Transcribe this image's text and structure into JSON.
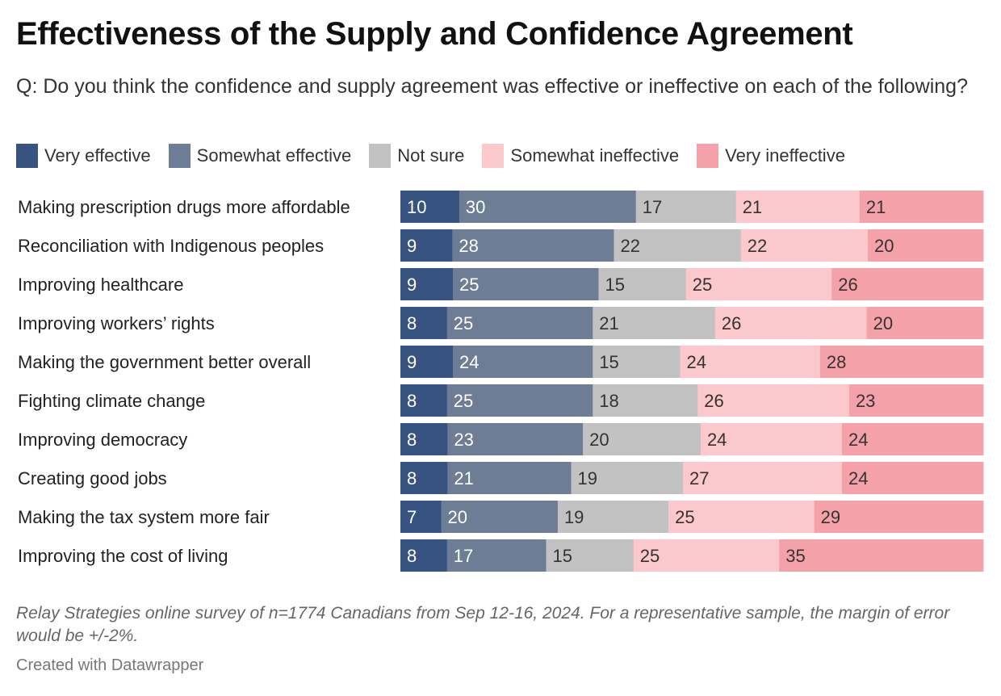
{
  "header": {
    "title": "Effectiveness of the Supply and Confidence Agreement",
    "subtitle": "Q: Do you think the confidence and supply agreement was effective or ineffective on each of the following?"
  },
  "legend": [
    {
      "label": "Very effective",
      "color": "#375480"
    },
    {
      "label": "Somewhat effective",
      "color": "#6e7d96"
    },
    {
      "label": "Not sure",
      "color": "#c2c2c2"
    },
    {
      "label": "Somewhat ineffective",
      "color": "#fbc8cb"
    },
    {
      "label": "Very ineffective",
      "color": "#f4a1a9"
    }
  ],
  "chart_data": {
    "type": "bar",
    "orientation": "horizontal",
    "stacked": true,
    "categories": [
      "Making prescription drugs more affordable",
      "Reconciliation with Indigenous peoples",
      "Improving healthcare",
      "Improving workers’ rights",
      "Making the government better overall",
      "Fighting climate change",
      "Improving democracy",
      "Creating good jobs",
      "Making the tax system more fair",
      "Improving the cost of living"
    ],
    "series": [
      {
        "name": "Very effective",
        "color": "#375480",
        "label_color": "#ffffff",
        "values": [
          10,
          9,
          9,
          8,
          9,
          8,
          8,
          8,
          7,
          8
        ]
      },
      {
        "name": "Somewhat effective",
        "color": "#6e7d96",
        "label_color": "#ffffff",
        "values": [
          30,
          28,
          25,
          25,
          24,
          25,
          23,
          21,
          20,
          17
        ]
      },
      {
        "name": "Not sure",
        "color": "#c2c2c2",
        "label_color": "#333333",
        "values": [
          17,
          22,
          15,
          21,
          15,
          18,
          20,
          19,
          19,
          15
        ]
      },
      {
        "name": "Somewhat ineffective",
        "color": "#fbc8cb",
        "label_color": "#333333",
        "values": [
          21,
          22,
          25,
          26,
          24,
          26,
          24,
          27,
          25,
          25
        ]
      },
      {
        "name": "Very ineffective",
        "color": "#f4a1a9",
        "label_color": "#333333",
        "values": [
          21,
          20,
          26,
          20,
          28,
          23,
          24,
          24,
          29,
          35
        ]
      }
    ]
  },
  "footer": {
    "notes": "Relay Strategies online survey of n=1774 Canadians from Sep 12-16, 2024. For a representative sample, the margin of error would be +/-2%.",
    "byline": "Created with Datawrapper"
  }
}
